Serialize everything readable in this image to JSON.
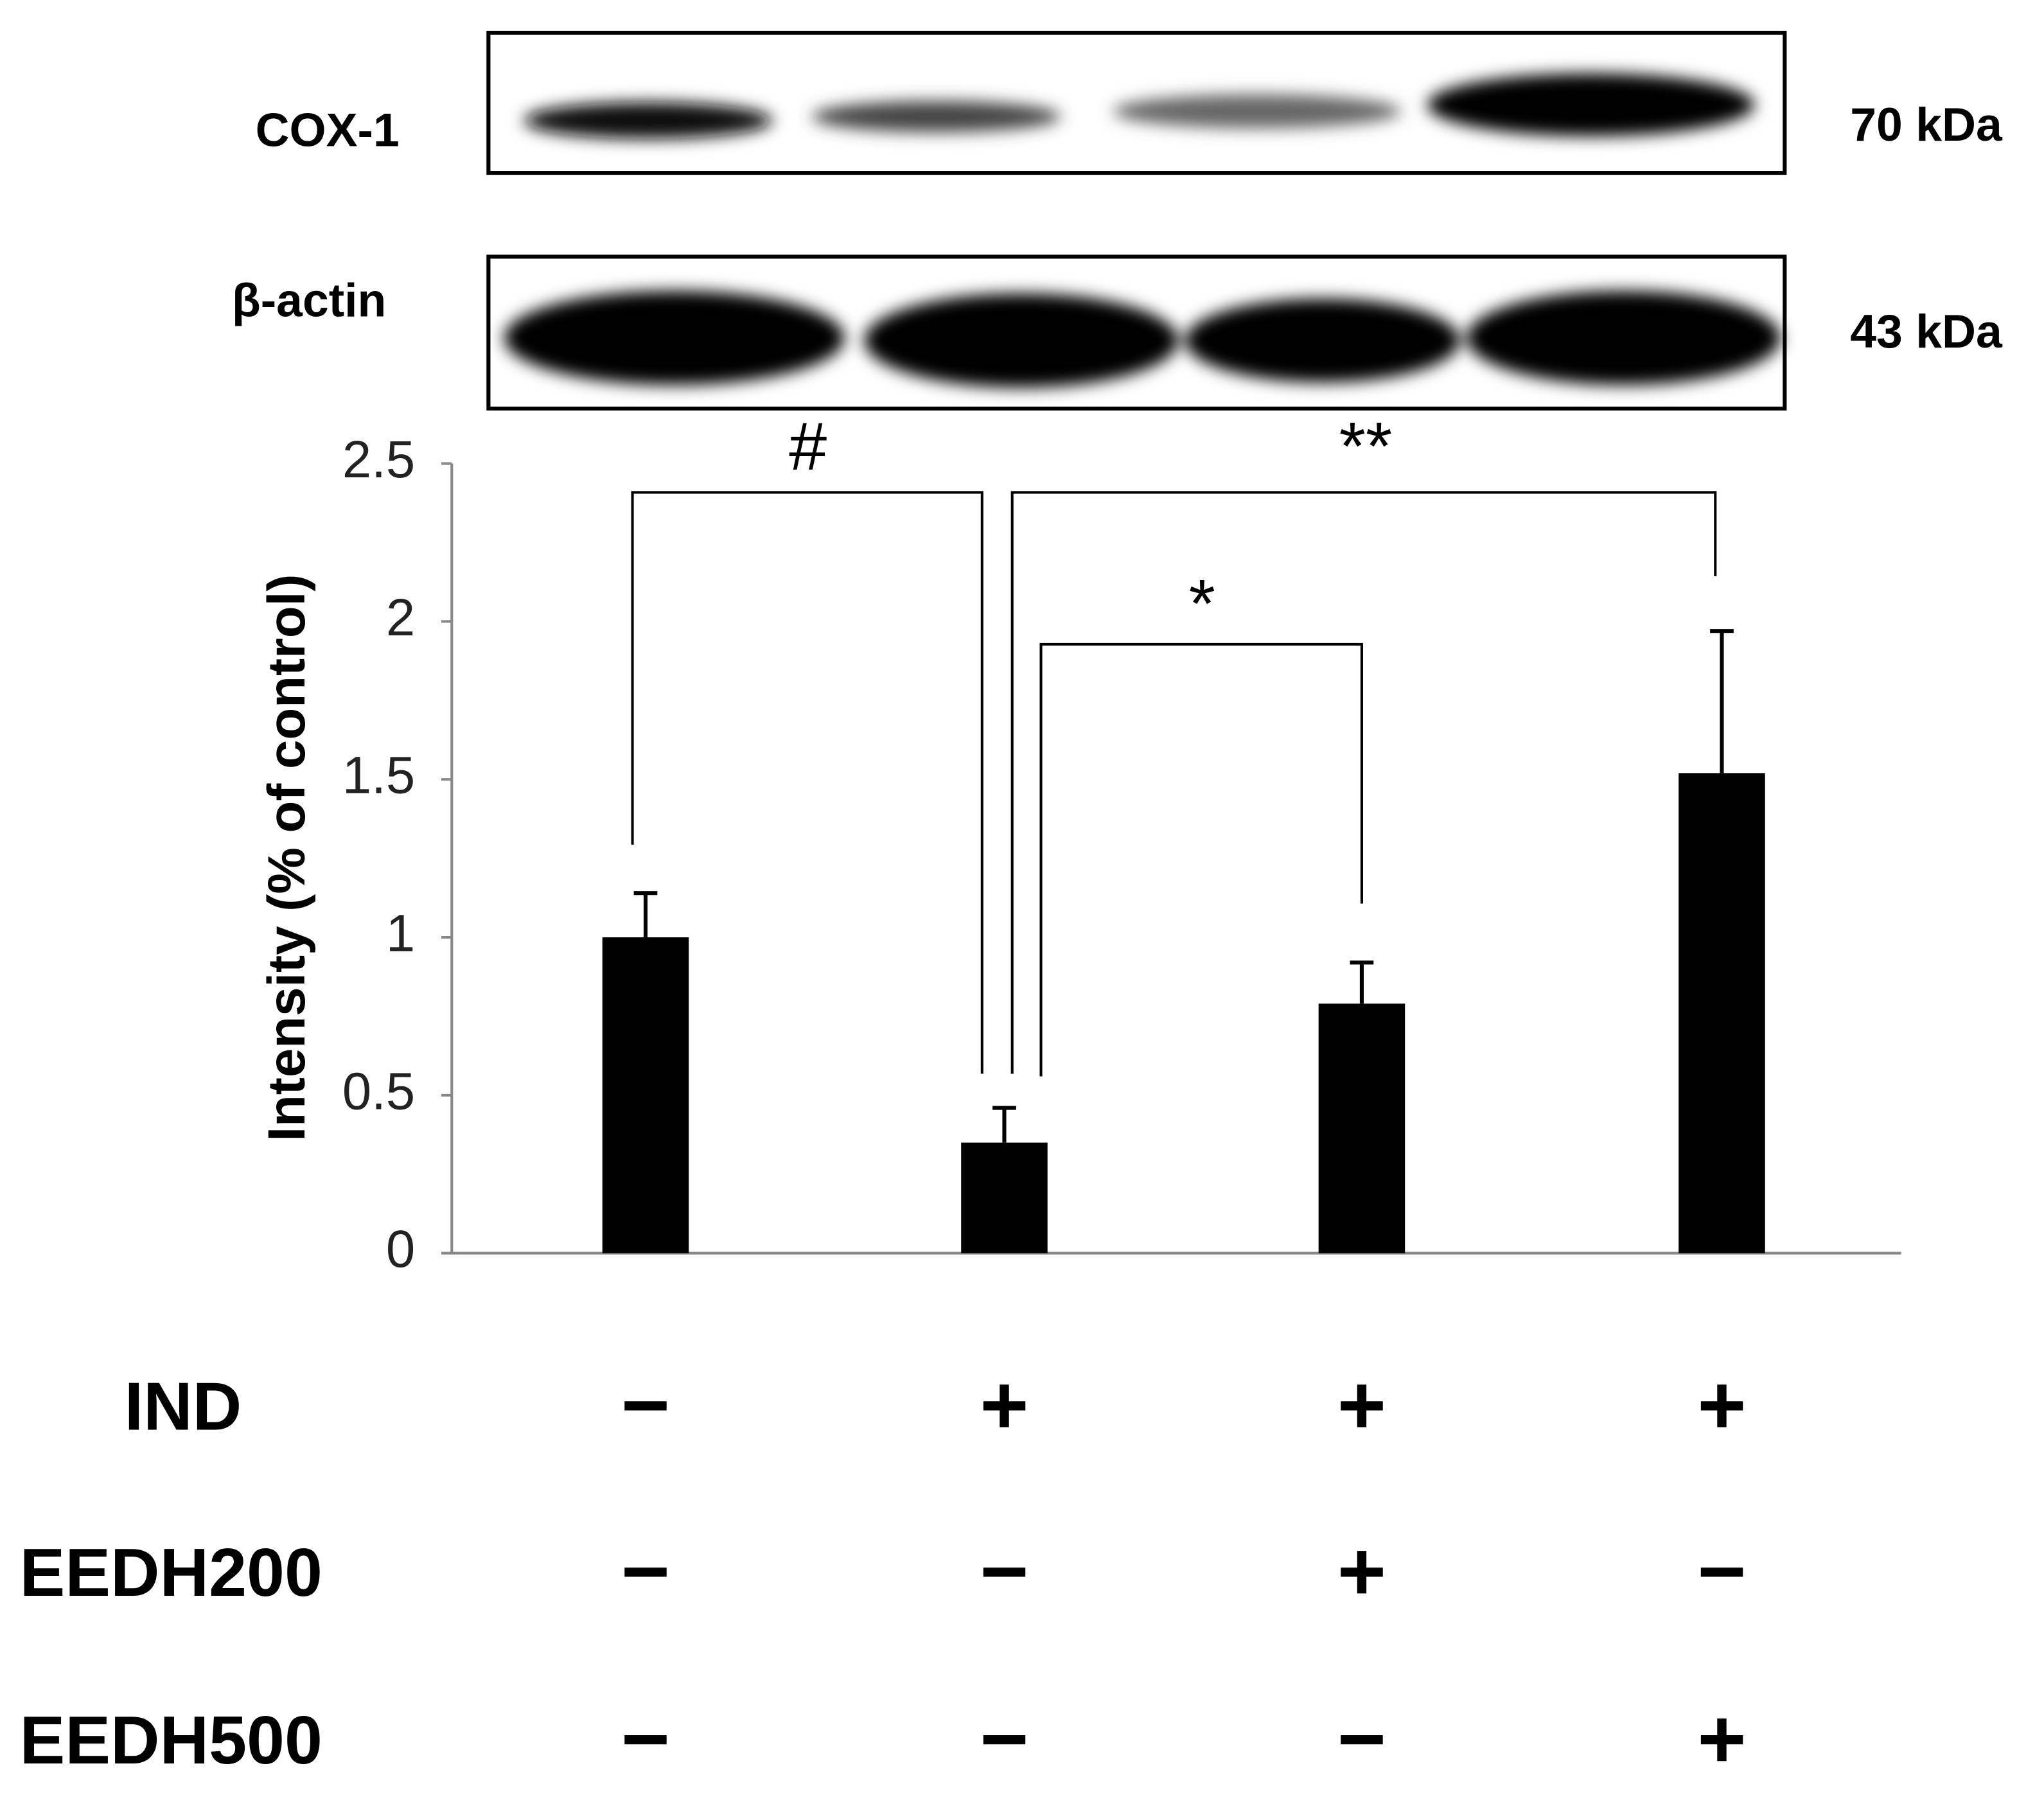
{
  "blot": {
    "rows": [
      {
        "label": "COX-1",
        "size": "70 kDa"
      },
      {
        "label": "β-actin",
        "size": "43 kDa"
      }
    ]
  },
  "chart_data": {
    "type": "bar",
    "ylabel": "Intensity (% of control)",
    "categories": [
      null,
      null,
      null,
      null
    ],
    "values": [
      1.0,
      0.35,
      0.79,
      1.52
    ],
    "errors": [
      0.14,
      0.11,
      0.13,
      0.45
    ],
    "color": "#000000",
    "ylim": [
      0,
      2.5
    ],
    "yticks": [
      0,
      0.5,
      1,
      1.5,
      2,
      2.5
    ],
    "annotations": [
      "#",
      "**",
      "*"
    ]
  },
  "treatments": [
    {
      "name": "IND",
      "signs": [
        "−",
        "+",
        "+",
        "+"
      ]
    },
    {
      "name": "EEDH200",
      "signs": [
        "−",
        "−",
        "+",
        "−"
      ]
    },
    {
      "name": "EEDH500",
      "signs": [
        "−",
        "−",
        "−",
        "+"
      ]
    }
  ]
}
